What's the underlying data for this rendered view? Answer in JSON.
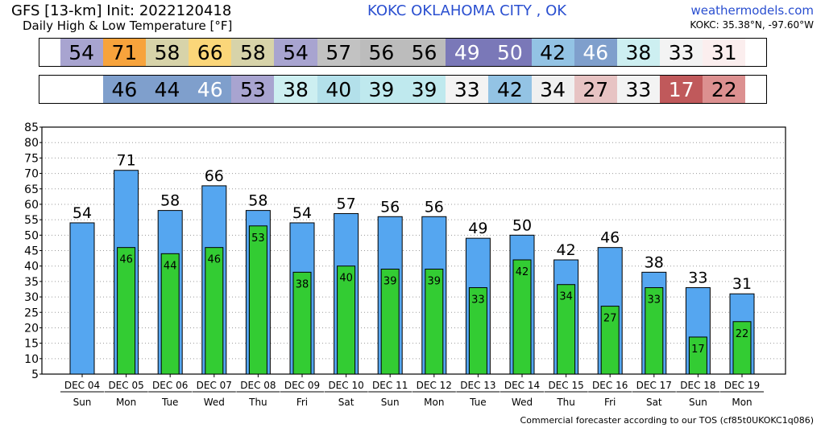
{
  "header": {
    "model_title": "GFS [13-km] Init: 2022120418",
    "subtitle": "Daily High & Low Temperature [°F]",
    "station": "KOKC OKLAHOMA CITY , OK",
    "site": "weathermodels.com",
    "coords": "KOKC: 35.38°N, -97.60°W"
  },
  "footer": {
    "note": "Commercial forecaster according to our TOS (cf85t0UKOKC1q086)"
  },
  "strips": {
    "high": {
      "values": [
        "54",
        "71",
        "58",
        "66",
        "58",
        "54",
        "57",
        "56",
        "56",
        "49",
        "50",
        "42",
        "46",
        "38",
        "33",
        "31"
      ],
      "colors": [
        "#a8a4d0",
        "#f7a33c",
        "#d7d3a9",
        "#fbd679",
        "#d7d3a9",
        "#a8a4d0",
        "#c2c2c2",
        "#bcbcbc",
        "#bcbcbc",
        "#7a78b8",
        "#7a78b8",
        "#93c3e4",
        "#7f9fcc",
        "#cdeff1",
        "#f3f3f3",
        "#fbeeee"
      ],
      "text_colors": [
        "#000",
        "#000",
        "#000",
        "#000",
        "#000",
        "#000",
        "#000",
        "#000",
        "#000",
        "#fff",
        "#fff",
        "#000",
        "#fff",
        "#000",
        "#000",
        "#000"
      ]
    },
    "low": {
      "values": [
        "46",
        "44",
        "46",
        "53",
        "38",
        "40",
        "39",
        "39",
        "33",
        "42",
        "34",
        "27",
        "33",
        "17",
        "22"
      ],
      "colors": [
        "#7f9fcc",
        "#7f9fcc",
        "#7f9fcc",
        "#a8a4d0",
        "#cdeff1",
        "#b3e0ea",
        "#bfe9ee",
        "#bfe9ee",
        "#f3f3f3",
        "#93c3e4",
        "#f0f0f0",
        "#e7c3c3",
        "#f3f3f3",
        "#c0595b",
        "#dc9090"
      ],
      "text_colors": [
        "#000",
        "#000",
        "#fff",
        "#000",
        "#000",
        "#000",
        "#000",
        "#000",
        "#000",
        "#000",
        "#000",
        "#000",
        "#000",
        "#fff",
        "#000"
      ]
    }
  },
  "chart_data": {
    "type": "bar",
    "ylabel": "",
    "ylim": [
      5,
      85
    ],
    "yticks": [
      5,
      10,
      15,
      20,
      25,
      30,
      35,
      40,
      45,
      50,
      55,
      60,
      65,
      70,
      75,
      80,
      85
    ],
    "categories": [
      "DEC 04",
      "DEC 05",
      "DEC 06",
      "DEC 07",
      "DEC 08",
      "DEC 09",
      "DEC 10",
      "DEC 11",
      "DEC 12",
      "DEC 13",
      "DEC 14",
      "DEC 15",
      "DEC 16",
      "DEC 17",
      "DEC 18",
      "DEC 19"
    ],
    "weekdays": [
      "Sun",
      "Mon",
      "Tue",
      "Wed",
      "Thu",
      "Fri",
      "Sat",
      "Sun",
      "Mon",
      "Tue",
      "Wed",
      "Thu",
      "Fri",
      "Sat",
      "Sun",
      "Mon"
    ],
    "series": [
      {
        "values": [
          54,
          71,
          58,
          66,
          58,
          54,
          57,
          56,
          56,
          49,
          50,
          42,
          46,
          38,
          33,
          31
        ],
        "color": "#55a6f0"
      },
      {
        "values": [
          null,
          46,
          44,
          46,
          53,
          38,
          40,
          39,
          39,
          33,
          42,
          34,
          27,
          33,
          17,
          22
        ],
        "color": "#33cc33"
      }
    ],
    "grid": true,
    "legend": "none"
  }
}
